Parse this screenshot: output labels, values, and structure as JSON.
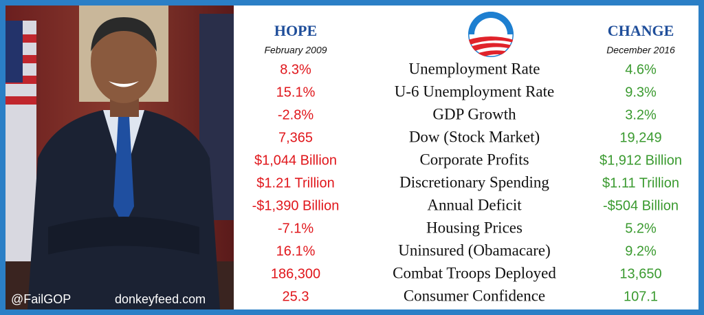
{
  "header": {
    "hope": {
      "title": "HOPE",
      "subtitle": "February 2009"
    },
    "change": {
      "title": "CHANGE",
      "subtitle": "December 2016"
    }
  },
  "rows": [
    {
      "metric": "Unemployment Rate",
      "before": "8.3%",
      "after": "4.6%"
    },
    {
      "metric": "U-6 Unemployment Rate",
      "before": "15.1%",
      "after": "9.3%"
    },
    {
      "metric": "GDP Growth",
      "before": "-2.8%",
      "after": "3.2%"
    },
    {
      "metric": "Dow (Stock Market)",
      "before": "7,365",
      "after": "19,249"
    },
    {
      "metric": "Corporate Profits",
      "before": "$1,044 Billion",
      "after": "$1,912 Billion"
    },
    {
      "metric": "Discretionary Spending",
      "before": "$1.21 Trillion",
      "after": "$1.11 Trillion"
    },
    {
      "metric": "Annual Deficit",
      "before": "-$1,390 Billion",
      "after": "-$504 Billion"
    },
    {
      "metric": "Housing Prices",
      "before": "-7.1%",
      "after": "5.2%"
    },
    {
      "metric": "Uninsured (Obamacare)",
      "before": "16.1%",
      "after": "9.2%"
    },
    {
      "metric": "Combat Troops Deployed",
      "before": "186,300",
      "after": "13,650"
    },
    {
      "metric": "Consumer Confidence",
      "before": "25.3",
      "after": "107.1"
    }
  ],
  "credits": {
    "handle": "@FailGOP",
    "site": "donkeyfeed.com"
  }
}
